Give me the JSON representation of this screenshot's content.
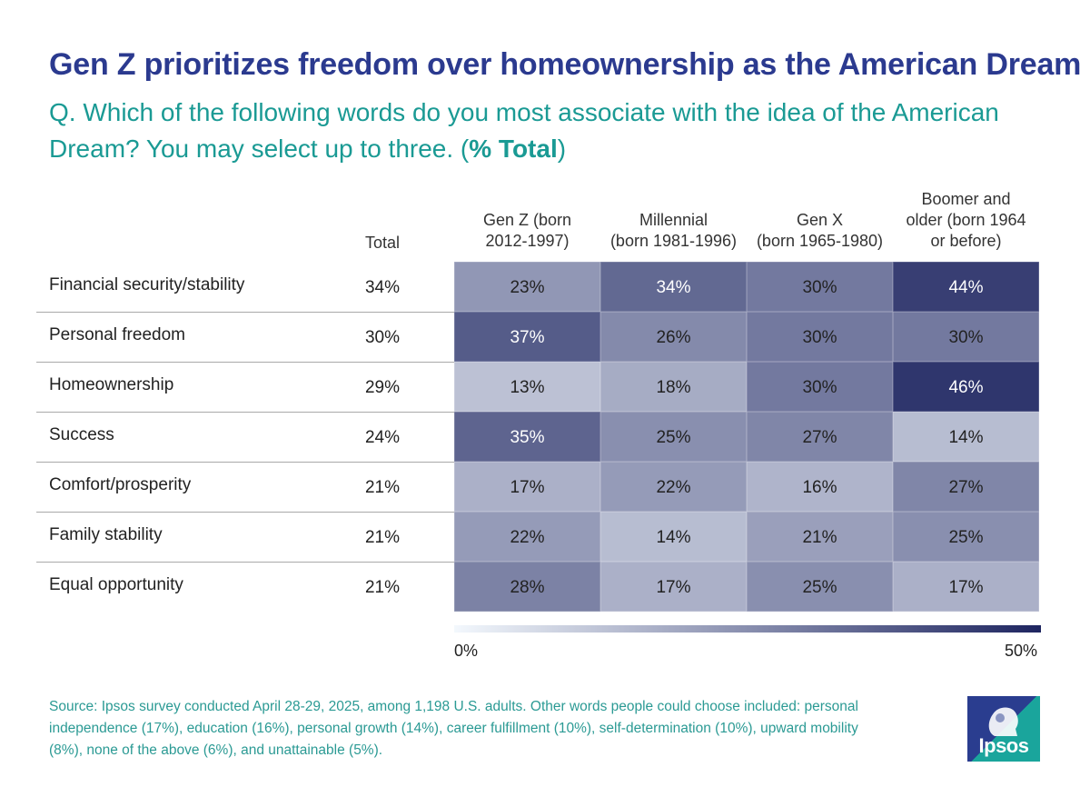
{
  "title": "Gen Z prioritizes freedom over homeownership as the American Dream",
  "subtitle": {
    "question": "Q. Which of the following words do you most associate with the idea of the American Dream? You may select up to three. (",
    "bold": "% Total",
    "close": ")"
  },
  "chart_data": {
    "type": "heatmap",
    "title": "Gen Z prioritizes freedom over homeownership as the American Dream",
    "total_header": "Total",
    "columns": [
      {
        "label_lines": [
          "Gen Z (born",
          "2012-1997)"
        ]
      },
      {
        "label_lines": [
          "Millennial",
          "(born 1981-1996)"
        ]
      },
      {
        "label_lines": [
          "Gen X",
          "(born 1965-1980)"
        ]
      },
      {
        "label_lines": [
          "Boomer and",
          "older (born 1964",
          "or before)"
        ]
      }
    ],
    "rows": [
      {
        "label": "Financial security/stability",
        "total": 34,
        "values": [
          23,
          34,
          30,
          44
        ]
      },
      {
        "label": "Personal freedom",
        "total": 30,
        "values": [
          37,
          26,
          30,
          30
        ]
      },
      {
        "label": "Homeownership",
        "total": 29,
        "values": [
          13,
          18,
          30,
          46
        ]
      },
      {
        "label": "Success",
        "total": 24,
        "values": [
          35,
          25,
          27,
          14
        ]
      },
      {
        "label": "Comfort/prosperity",
        "total": 21,
        "values": [
          17,
          22,
          16,
          27
        ]
      },
      {
        "label": "Family stability",
        "total": 21,
        "values": [
          22,
          14,
          21,
          25
        ]
      },
      {
        "label": "Equal opportunity",
        "total": 21,
        "values": [
          28,
          17,
          25,
          17
        ]
      }
    ],
    "unit": "%",
    "scale": {
      "min": 0,
      "max": 50,
      "min_label": "0%",
      "max_label": "50%",
      "low_color": "#f3f8fd",
      "high_color": "#1e2560"
    }
  },
  "source": "Source: Ipsos survey conducted April 28-29, 2025, among 1,198 U.S. adults. Other words people could choose included: personal independence (17%), education (16%), personal growth (14%), career fulfillment (10%), self-determination (10%), upward mobility (8%), none of the above (6%), and unattainable (5%).",
  "logo": {
    "text": "Ipsos",
    "color_dark": "#2a3d8f",
    "color_teal": "#1aa59c"
  }
}
